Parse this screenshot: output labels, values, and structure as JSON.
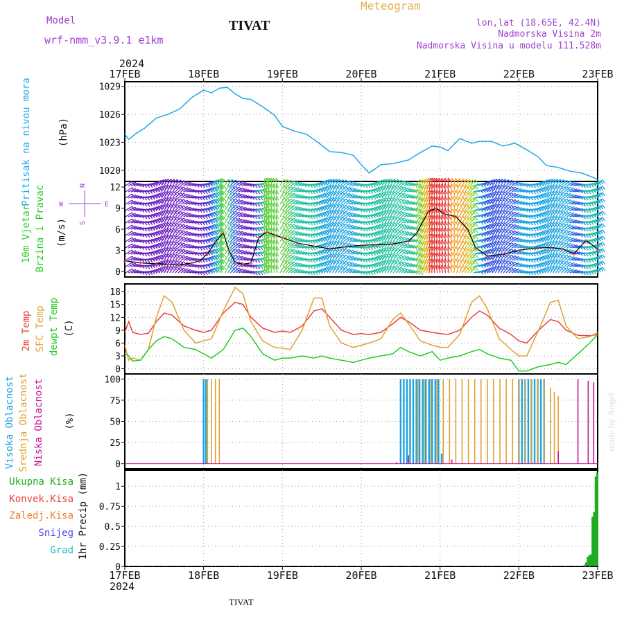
{
  "header": {
    "model_label": "Model",
    "model_value": "wrf-nmm_v3.9.1 e1km",
    "station": "TIVAT",
    "title": "Meteogram",
    "coords": "lon,lat (18.65E, 42.4N)",
    "elevation": "Nadmorska Visina 2m",
    "model_elevation": "Nadmorska Visina u modelu 111.528m",
    "year_top": "2024",
    "year_bottom": "2024",
    "footer_station": "TIVAT",
    "credit": "made by Angel"
  },
  "colors": {
    "pressure": "#1fa8e8",
    "wind_label": "#22cc22",
    "temp_2m": "#e8413c",
    "temp_sfc": "#e0a030",
    "dewpoint": "#22cc22",
    "cloud_high": "#1aa3e0",
    "cloud_mid": "#e0a030",
    "cloud_low": "#cc1199",
    "precip_total": "#22aa22",
    "precip_conv": "#e8413c",
    "precip_frz": "#f08030",
    "precip_snow": "#4444ee",
    "precip_grad": "#22bbbb",
    "header_purple": "#a040d0",
    "header_orange": "#e0b050"
  },
  "chart_data": [
    {
      "type": "line",
      "panel": "pressure",
      "ylabel_a": "Pritisak na nivou mora",
      "ylabel_b": "(hPa)",
      "ylim": [
        1018.8,
        1029.5
      ],
      "yticks": [
        "1029",
        "1026",
        "1023",
        "1020"
      ],
      "ytick_values": [
        1029,
        1026,
        1023,
        1020
      ],
      "xticks": [
        "17FEB",
        "18FEB",
        "19FEB",
        "20FEB",
        "21FEB",
        "22FEB",
        "23FEB"
      ],
      "x_days": [
        0,
        1,
        2,
        3,
        4,
        5,
        6
      ],
      "xlim": [
        0,
        6
      ],
      "grid": true,
      "series": [
        {
          "x": [
            0,
            0.05,
            0.15,
            0.25,
            0.4,
            0.55,
            0.7,
            0.85,
            1.0,
            1.1,
            1.2,
            1.3,
            1.4,
            1.5,
            1.6,
            1.75,
            1.9,
            2.0,
            2.15,
            2.3,
            2.45,
            2.6,
            2.75,
            2.9,
            3.0,
            3.1,
            3.15,
            3.25,
            3.4,
            3.6,
            3.75,
            3.9,
            4.0,
            4.1,
            4.25,
            4.4,
            4.5,
            4.65,
            4.8,
            4.95,
            5.1,
            5.25,
            5.35,
            5.5,
            5.65,
            5.8,
            5.95,
            6.0
          ],
          "y": [
            1023.9,
            1023.3,
            1024.0,
            1024.5,
            1025.6,
            1026.0,
            1026.6,
            1027.8,
            1028.6,
            1028.3,
            1028.8,
            1028.9,
            1028.2,
            1027.7,
            1027.6,
            1026.8,
            1025.9,
            1024.7,
            1024.2,
            1023.9,
            1023.0,
            1022.0,
            1021.9,
            1021.6,
            1020.6,
            1019.7,
            1020.0,
            1020.6,
            1020.7,
            1021.1,
            1021.9,
            1022.6,
            1022.5,
            1022.1,
            1023.4,
            1022.9,
            1023.1,
            1023.1,
            1022.6,
            1022.9,
            1022.2,
            1021.4,
            1020.5,
            1020.3,
            1019.9,
            1019.7,
            1019.2,
            1019.0
          ]
        }
      ]
    },
    {
      "type": "line",
      "panel": "wind",
      "ylabel_a": "10m Vjetar",
      "ylabel_b": "Brzina i Pravac",
      "ylabel_c": "(m/s)",
      "compass_n": "N",
      "compass_s": "S",
      "compass_e": "E",
      "compass_w": "W",
      "ylim": [
        -0.8,
        12.8
      ],
      "yticks": [
        "12",
        "9",
        "6",
        "3",
        "0"
      ],
      "ytick_values": [
        12,
        9,
        6,
        3,
        0
      ],
      "grid": true,
      "series": [
        {
          "x": [
            0,
            0.2,
            0.4,
            0.55,
            0.7,
            0.85,
            0.95,
            1.05,
            1.15,
            1.25,
            1.32,
            1.4,
            1.5,
            1.6,
            1.7,
            1.8,
            1.9,
            2.0,
            2.2,
            2.4,
            2.6,
            2.8,
            3.0,
            3.2,
            3.4,
            3.6,
            3.7,
            3.85,
            3.95,
            4.05,
            4.2,
            4.35,
            4.45,
            4.6,
            4.8,
            5.0,
            5.2,
            5.4,
            5.55,
            5.7,
            5.85,
            6.0
          ],
          "y": [
            1.5,
            1.2,
            1.1,
            1.0,
            0.9,
            1.2,
            1.5,
            2.5,
            4.2,
            5.5,
            3.0,
            1.3,
            1.0,
            1.2,
            4.8,
            5.6,
            5.2,
            4.8,
            4.0,
            3.6,
            3.2,
            3.5,
            3.7,
            3.8,
            3.9,
            4.3,
            5.4,
            8.5,
            9.0,
            8.2,
            7.8,
            6.0,
            3.4,
            2.2,
            2.4,
            3.0,
            3.3,
            3.4,
            3.2,
            2.5,
            4.4,
            3.2
          ]
        }
      ]
    },
    {
      "type": "line",
      "panel": "temperature",
      "ylabel_a": "2m Temp",
      "ylabel_b": "SFC Temp",
      "ylabel_c": "dewpt Temp",
      "ylabel_d": "(C)",
      "ylim": [
        -1.2,
        19.8
      ],
      "yticks": [
        "18",
        "15",
        "12",
        "9",
        "6",
        "3",
        "0"
      ],
      "ytick_values": [
        18,
        15,
        12,
        9,
        6,
        3,
        0
      ],
      "grid": true,
      "series": [
        {
          "name": "2m Temp",
          "x": [
            0,
            0.05,
            0.1,
            0.2,
            0.3,
            0.4,
            0.5,
            0.6,
            0.75,
            0.9,
            1.0,
            1.1,
            1.25,
            1.4,
            1.5,
            1.6,
            1.75,
            1.9,
            2.0,
            2.1,
            2.25,
            2.4,
            2.5,
            2.6,
            2.75,
            2.9,
            3.0,
            3.1,
            3.25,
            3.4,
            3.5,
            3.6,
            3.75,
            3.9,
            4.0,
            4.1,
            4.25,
            4.4,
            4.5,
            4.6,
            4.75,
            4.9,
            5.0,
            5.1,
            5.25,
            5.4,
            5.5,
            5.6,
            5.75,
            5.9,
            6.0
          ],
          "y": [
            8.5,
            11.0,
            8.5,
            8.0,
            8.3,
            11.0,
            13.0,
            12.5,
            10.0,
            9.0,
            8.5,
            9.0,
            13.0,
            15.5,
            15.0,
            12.0,
            9.5,
            8.5,
            8.8,
            8.5,
            10.0,
            13.5,
            14.0,
            12.0,
            9.0,
            8.0,
            8.2,
            8.0,
            8.5,
            10.5,
            12.0,
            11.0,
            9.0,
            8.5,
            8.2,
            8.0,
            9.0,
            12.0,
            13.5,
            12.5,
            9.5,
            8.0,
            6.5,
            6.0,
            9.0,
            11.5,
            11.0,
            9.0,
            7.8,
            7.7,
            8.0
          ]
        },
        {
          "name": "SFC Temp",
          "x": [
            0,
            0.05,
            0.1,
            0.2,
            0.3,
            0.4,
            0.5,
            0.6,
            0.75,
            0.9,
            1.0,
            1.1,
            1.25,
            1.4,
            1.5,
            1.6,
            1.75,
            1.9,
            2.0,
            2.1,
            2.25,
            2.4,
            2.5,
            2.6,
            2.75,
            2.9,
            3.0,
            3.1,
            3.25,
            3.4,
            3.5,
            3.6,
            3.75,
            3.9,
            4.0,
            4.1,
            4.25,
            4.4,
            4.5,
            4.6,
            4.75,
            4.9,
            5.0,
            5.1,
            5.25,
            5.4,
            5.5,
            5.6,
            5.75,
            5.9,
            6.0
          ],
          "y": [
            5.5,
            2.0,
            2.5,
            2.0,
            4.5,
            12.0,
            17.0,
            15.5,
            9.0,
            6.0,
            6.5,
            7.0,
            13.5,
            19.0,
            17.5,
            11.0,
            6.5,
            5.0,
            4.8,
            4.5,
            9.0,
            16.5,
            16.5,
            10.0,
            6.0,
            5.0,
            5.5,
            6.0,
            7.0,
            11.5,
            13.0,
            10.5,
            6.5,
            5.5,
            5.0,
            5.0,
            8.0,
            15.5,
            17.0,
            14.0,
            7.0,
            4.5,
            3.0,
            3.0,
            9.0,
            15.5,
            16.0,
            10.0,
            7.0,
            7.5,
            8.5
          ]
        },
        {
          "name": "dewpt Temp",
          "x": [
            0,
            0.05,
            0.1,
            0.2,
            0.3,
            0.4,
            0.5,
            0.6,
            0.75,
            0.9,
            1.0,
            1.1,
            1.25,
            1.4,
            1.5,
            1.6,
            1.75,
            1.9,
            2.0,
            2.1,
            2.25,
            2.4,
            2.5,
            2.6,
            2.75,
            2.9,
            3.0,
            3.1,
            3.25,
            3.4,
            3.5,
            3.6,
            3.75,
            3.9,
            4.0,
            4.1,
            4.25,
            4.4,
            4.5,
            4.6,
            4.75,
            4.9,
            5.0,
            5.1,
            5.25,
            5.4,
            5.5,
            5.6,
            5.75,
            5.9,
            6.0
          ],
          "y": [
            3.5,
            3.0,
            1.8,
            2.0,
            4.5,
            6.5,
            7.5,
            7.0,
            5.0,
            4.5,
            3.5,
            2.5,
            4.5,
            9.0,
            9.5,
            7.5,
            3.5,
            2.0,
            2.5,
            2.5,
            3.0,
            2.5,
            3.0,
            2.5,
            2.0,
            1.5,
            2.0,
            2.5,
            3.0,
            3.5,
            5.0,
            4.0,
            3.0,
            4.0,
            2.0,
            2.5,
            3.0,
            4.0,
            4.5,
            3.5,
            2.5,
            2.0,
            -0.5,
            -0.5,
            0.5,
            1.0,
            1.5,
            1.0,
            3.5,
            6.0,
            8.0
          ]
        }
      ]
    },
    {
      "type": "bar",
      "panel": "clouds",
      "ylabel_a": "Visoka Oblacnost",
      "ylabel_b": "Srednja Oblacnost",
      "ylabel_c": "Niska Oblacnost",
      "ylabel_d": "(%)",
      "ylim": [
        -6,
        106
      ],
      "yticks": [
        "100",
        "75",
        "50",
        "25",
        "0"
      ],
      "ytick_values": [
        100,
        75,
        50,
        25,
        0
      ],
      "grid": true,
      "series": [
        {
          "name": "Visoka Oblacnost",
          "x": [
            1.0,
            1.03,
            3.5,
            3.54,
            3.58,
            3.62,
            3.66,
            3.7,
            3.74,
            3.78,
            3.82,
            3.86,
            3.9,
            3.94,
            3.98,
            4.02,
            5.0,
            5.04,
            5.08,
            5.12,
            5.16,
            5.2,
            5.24,
            5.28,
            5.32
          ],
          "y": [
            100,
            100,
            100,
            100,
            100,
            100,
            100,
            100,
            100,
            100,
            100,
            100,
            100,
            100,
            100,
            12,
            100,
            100,
            100,
            100,
            100,
            100,
            100,
            100,
            100
          ]
        },
        {
          "name": "Srednja Oblacnost",
          "x": [
            1.05,
            1.1,
            1.15,
            1.2,
            3.72,
            3.8,
            3.88,
            3.96,
            4.04,
            4.12,
            4.2,
            4.28,
            4.36,
            4.44,
            4.52,
            4.6,
            4.68,
            4.76,
            4.84,
            4.92,
            5.0,
            5.08,
            5.16,
            5.24,
            5.32,
            5.4,
            5.45,
            5.5
          ],
          "y": [
            100,
            100,
            100,
            100,
            100,
            100,
            100,
            100,
            100,
            100,
            100,
            100,
            100,
            100,
            100,
            100,
            100,
            100,
            100,
            100,
            100,
            100,
            100,
            100,
            100,
            90,
            85,
            80
          ]
        },
        {
          "name": "Niska Oblacnost",
          "x": [
            3.45,
            3.6,
            4.15,
            5.5,
            5.75,
            5.88,
            5.95
          ],
          "y": [
            2,
            10,
            5,
            15,
            100,
            98,
            96
          ]
        }
      ]
    },
    {
      "type": "bar",
      "panel": "precip",
      "ylabel_a": "1hr Precip (mm)",
      "legend": [
        "Ukupna Kisa",
        "Konvek.Kisa",
        "Zaledj.Kisa",
        "Snijeg",
        "Grad"
      ],
      "ylim": [
        0,
        1.2
      ],
      "yticks": [
        "1",
        "0.75",
        "0.5",
        "0.25",
        "0"
      ],
      "ytick_values": [
        1,
        0.75,
        0.5,
        0.25,
        0
      ],
      "xticks": [
        "17FEB",
        "18FEB",
        "19FEB",
        "20FEB",
        "21FEB",
        "22FEB",
        "23FEB"
      ],
      "grid": true,
      "series": [
        {
          "name": "Ukupna Kisa",
          "x": [
            5.84,
            5.86,
            5.88,
            5.9,
            5.92,
            5.94,
            5.96,
            5.98,
            6.0
          ],
          "y": [
            0.02,
            0.05,
            0.12,
            0.14,
            0.15,
            0.62,
            0.68,
            1.12,
            1.17
          ]
        }
      ]
    }
  ]
}
